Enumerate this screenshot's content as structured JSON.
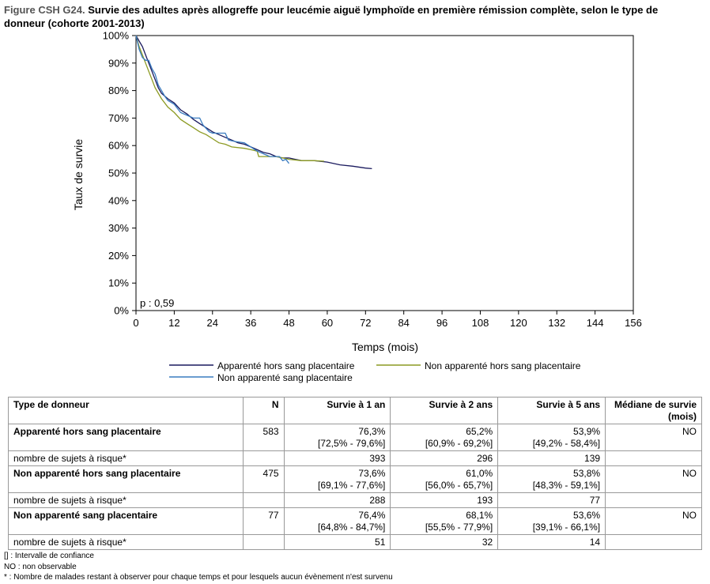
{
  "figure": {
    "id": "Figure CSH G24.",
    "title": "Survie des adultes après allogreffe pour leucémie aiguë lymphoïde en première rémission complète, selon le type de donneur  (cohorte 2001-2013)"
  },
  "chart_data": {
    "type": "line",
    "xlabel": "Temps (mois)",
    "ylabel": "Taux de survie",
    "xlim": [
      0,
      156
    ],
    "ylim": [
      0,
      100
    ],
    "x_ticks": [
      "0",
      "12",
      "24",
      "36",
      "48",
      "60",
      "72",
      "84",
      "96",
      "108",
      "120",
      "132",
      "144",
      "156"
    ],
    "y_ticks": [
      "0%",
      "10%",
      "20%",
      "30%",
      "40%",
      "50%",
      "60%",
      "70%",
      "80%",
      "90%",
      "100%"
    ],
    "annotation": "p : 0,59",
    "grid": false,
    "legend_position": "bottom",
    "series": [
      {
        "name": "Apparenté hors sang placentaire",
        "color": "#1a1a5e",
        "points": [
          [
            0,
            100
          ],
          [
            1,
            98
          ],
          [
            2,
            96
          ],
          [
            3,
            93
          ],
          [
            4,
            90
          ],
          [
            5,
            87
          ],
          [
            6,
            84
          ],
          [
            7,
            81
          ],
          [
            8,
            79
          ],
          [
            10,
            77
          ],
          [
            12,
            75.5
          ],
          [
            14,
            73
          ],
          [
            16,
            71.5
          ],
          [
            18,
            69.5
          ],
          [
            20,
            68
          ],
          [
            22,
            66.5
          ],
          [
            24,
            65
          ],
          [
            26,
            64
          ],
          [
            28,
            63
          ],
          [
            30,
            62
          ],
          [
            32,
            61
          ],
          [
            34,
            60.5
          ],
          [
            36,
            59.5
          ],
          [
            38,
            58.5
          ],
          [
            40,
            57.5
          ],
          [
            42,
            57
          ],
          [
            44,
            56
          ],
          [
            46,
            55.5
          ],
          [
            48,
            55.5
          ],
          [
            50,
            55
          ],
          [
            52,
            54.5
          ],
          [
            56,
            54.5
          ],
          [
            60,
            54
          ],
          [
            64,
            53
          ],
          [
            68,
            52.5
          ],
          [
            72,
            51.8
          ],
          [
            74,
            51.6
          ]
        ]
      },
      {
        "name": "Non apparenté hors sang placentaire",
        "color": "#8c9a22",
        "points": [
          [
            0,
            100
          ],
          [
            1,
            96
          ],
          [
            2,
            93
          ],
          [
            3,
            90
          ],
          [
            4,
            87
          ],
          [
            5,
            84
          ],
          [
            6,
            81
          ],
          [
            8,
            77
          ],
          [
            10,
            74
          ],
          [
            12,
            72
          ],
          [
            14,
            69.5
          ],
          [
            16,
            68
          ],
          [
            18,
            66.5
          ],
          [
            20,
            65
          ],
          [
            22,
            64
          ],
          [
            24,
            62.5
          ],
          [
            26,
            61
          ],
          [
            28,
            60.5
          ],
          [
            30,
            59.5
          ],
          [
            34,
            59
          ],
          [
            36,
            58.5
          ],
          [
            38,
            58
          ],
          [
            38.5,
            56
          ],
          [
            44,
            56
          ],
          [
            48,
            55
          ],
          [
            52,
            54.5
          ],
          [
            56,
            54.5
          ],
          [
            59,
            54.3
          ]
        ]
      },
      {
        "name": "Non apparenté sang placentaire",
        "color": "#3a7cc0",
        "points": [
          [
            0,
            100
          ],
          [
            1,
            95
          ],
          [
            2,
            92
          ],
          [
            3,
            91
          ],
          [
            4,
            91
          ],
          [
            5,
            88
          ],
          [
            6,
            86
          ],
          [
            7,
            82
          ],
          [
            8,
            80
          ],
          [
            9,
            78
          ],
          [
            10,
            76.4
          ],
          [
            12,
            75
          ],
          [
            14,
            72
          ],
          [
            16,
            71
          ],
          [
            18,
            70
          ],
          [
            20,
            70
          ],
          [
            21,
            67.5
          ],
          [
            23,
            65
          ],
          [
            24,
            64.5
          ],
          [
            28,
            64.5
          ],
          [
            29,
            62
          ],
          [
            31,
            61.5
          ],
          [
            34,
            61
          ],
          [
            36,
            59.5
          ],
          [
            38,
            58
          ],
          [
            40,
            57
          ],
          [
            42,
            56
          ],
          [
            45,
            56
          ],
          [
            46,
            54.5
          ],
          [
            47,
            55
          ],
          [
            48,
            53.5
          ]
        ]
      }
    ]
  },
  "table": {
    "headers": [
      "Type de donneur",
      "N",
      "Survie à 1 an",
      "Survie à 2 ans",
      "Survie à 5 ans",
      "Médiane de survie (mois)"
    ],
    "groups": [
      {
        "name": "Apparenté hors sang placentaire",
        "n": "583",
        "s1": "76,3%",
        "ci1": "[72,5% - 79,6%]",
        "s2": "65,2%",
        "ci2": "[60,9% - 69,2%]",
        "s5": "53,9%",
        "ci5": "[49,2% - 58,4%]",
        "median": "NO",
        "risk_label": "nombre de sujets à risque*",
        "risk": [
          "393",
          "296",
          "139"
        ]
      },
      {
        "name": "Non apparenté hors sang placentaire",
        "n": "475",
        "s1": "73,6%",
        "ci1": "[69,1% - 77,6%]",
        "s2": "61,0%",
        "ci2": "[56,0% - 65,7%]",
        "s5": "53,8%",
        "ci5": "[48,3% - 59,1%]",
        "median": "NO",
        "risk_label": "nombre de sujets à risque*",
        "risk": [
          "288",
          "193",
          "77"
        ]
      },
      {
        "name": "Non apparenté sang placentaire",
        "n": "77",
        "s1": "76,4%",
        "ci1": "[64,8% - 84,7%]",
        "s2": "68,1%",
        "ci2": "[55,5% - 77,9%]",
        "s5": "53,6%",
        "ci5": "[39,1% - 66,1%]",
        "median": "NO",
        "risk_label": "nombre de sujets à risque*",
        "risk": [
          "51",
          "32",
          "14"
        ]
      }
    ]
  },
  "notes": [
    "[] : Intervalle de confiance",
    "NO : non observable",
    "* : Nombre de malades restant à observer pour chaque temps et pour lesquels aucun évènement n'est survenu"
  ]
}
